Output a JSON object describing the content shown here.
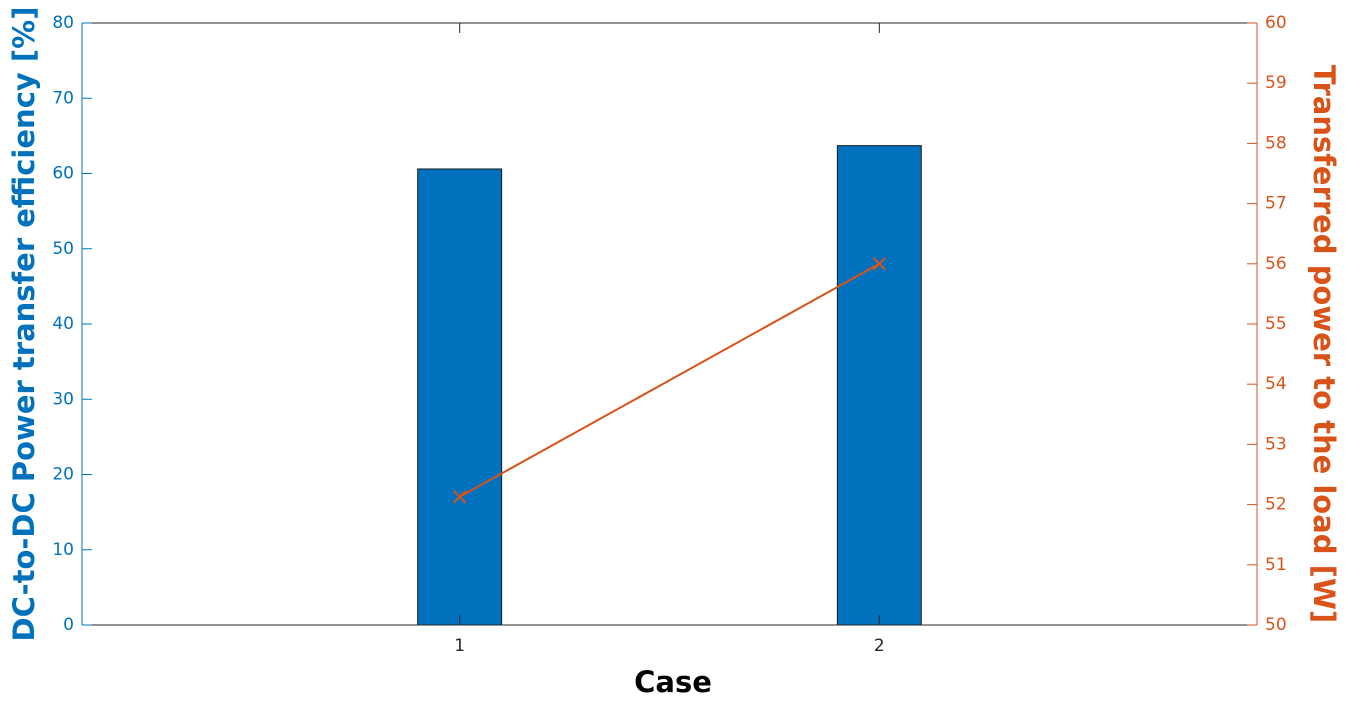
{
  "chart_data": {
    "type": "bar",
    "xlabel": "Case",
    "ylabel": "DC-to-DC Power transfer efficiency [%]",
    "y2label": "Transferred power to the load [W]",
    "x": [
      1,
      2
    ],
    "xlim": [
      0.1,
      2.9
    ],
    "xticks": [
      1,
      2
    ],
    "ylim": [
      0,
      80
    ],
    "yticks": [
      0,
      10,
      20,
      30,
      40,
      50,
      60,
      70,
      80
    ],
    "y2lim": [
      50,
      60
    ],
    "y2ticks": [
      50,
      51,
      52,
      53,
      54,
      55,
      56,
      57,
      58,
      59,
      60
    ],
    "bar_width": 0.2,
    "series": [
      {
        "type": "bar",
        "color": "#0072BD",
        "values": [
          60.6,
          63.7
        ]
      },
      {
        "type": "line",
        "axis": "y2",
        "color": "#D95319",
        "marker": "x",
        "values": [
          52.13,
          56.0
        ]
      }
    ]
  }
}
